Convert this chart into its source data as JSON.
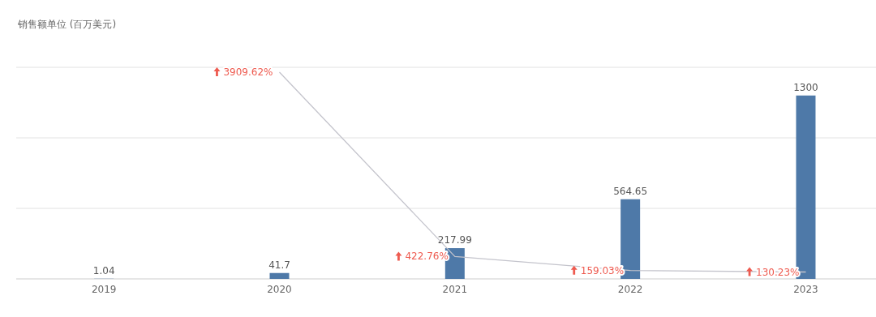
{
  "chart_data": {
    "type": "bar",
    "ylabel": "销售额单位 (百万美元)",
    "categories": [
      "2019",
      "2020",
      "2021",
      "2022",
      "2023"
    ],
    "series": [
      {
        "color": "#4e79a8",
        "values": [
          1.04,
          41.7,
          217.99,
          564.65,
          1300
        ]
      },
      {
        "type": "line",
        "axis": "y2",
        "color": "#c4c4cc",
        "values": [
          null,
          3909.62,
          422.76,
          159.03,
          130.23
        ],
        "value_labels": [
          null,
          "3909.62%",
          "422.76%",
          "159.03%",
          "130.23%"
        ]
      }
    ],
    "ylim": [
      0,
      1500
    ],
    "yticks": [
      {
        "value": 0,
        "label": null
      },
      {
        "value": 500,
        "label": null
      },
      {
        "value": 1000,
        "label": null
      },
      {
        "value": 1500,
        "label": null
      }
    ],
    "data_labels": true,
    "grid": "y",
    "tick_labels": "x",
    "marker": "none"
  }
}
